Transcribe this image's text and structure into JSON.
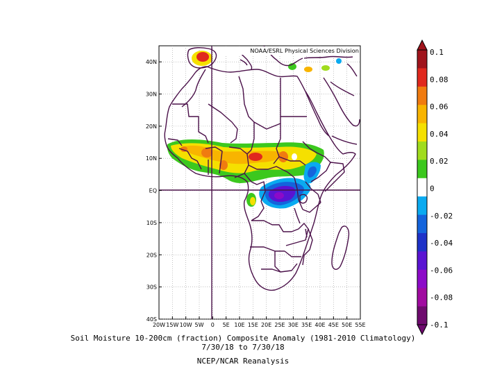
{
  "map": {
    "credit": "NOAA/ESRL Physical Sciences Division",
    "lat_ticks": [
      "40N",
      "30N",
      "20N",
      "10N",
      "EQ",
      "10S",
      "20S",
      "30S",
      "40S"
    ],
    "lon_ticks": [
      "20W",
      "15W",
      "10W",
      "5W",
      "0",
      "5E",
      "10E",
      "15E",
      "20E",
      "25E",
      "30E",
      "35E",
      "40E",
      "45E",
      "50E",
      "55E"
    ],
    "lon_range": [
      -20,
      55
    ],
    "lat_range": [
      -40,
      45
    ],
    "border_color": "#4a1049"
  },
  "colorbar": {
    "labels": [
      "0.1",
      "0.08",
      "0.06",
      "0.04",
      "0.02",
      "0",
      "-0.02",
      "-0.04",
      "-0.06",
      "-0.08",
      "-0.1"
    ],
    "colors": [
      "#a0141c",
      "#e0281e",
      "#f07b10",
      "#f8b400",
      "#f5e000",
      "#a0dc1e",
      "#3cc81e",
      "#ffffff",
      "#0aaaf0",
      "#1464dc",
      "#1e32c8",
      "#5a14d2",
      "#8c0ac8",
      "#a00aa0",
      "#6e0a6e"
    ]
  },
  "captions": {
    "line1": "Soil Moisture 10-200cm (fraction) Composite Anomaly (1981-2010 Climatology)",
    "line2": "7/30/18  to 7/30/18",
    "line3": "NCEP/NCAR Reanalysis"
  }
}
